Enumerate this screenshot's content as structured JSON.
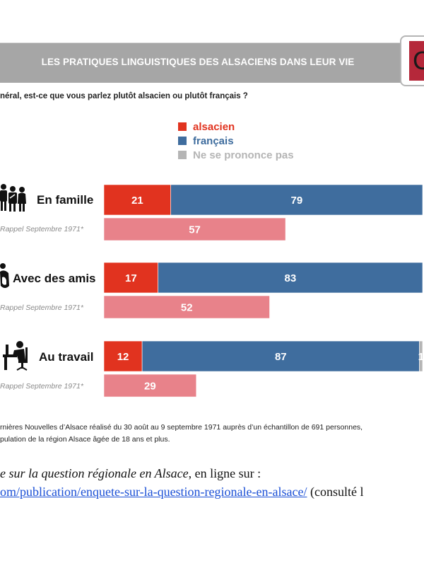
{
  "header": {
    "title": "LES PRATIQUES LINGUISTIQUES DES ALSACIENS DANS LEUR VIE",
    "logo_glyph": "C",
    "question": "néral, est-ce que vous parlez plutôt alsacien ou plutôt français ?"
  },
  "colors": {
    "alsacien": "#e1331f",
    "francais": "#3f6d9e",
    "nsp": "#b5b5b5",
    "rappel": "#e8828a",
    "banner": "#a6a6a6"
  },
  "chart_data": {
    "type": "bar",
    "orientation": "horizontal-stacked",
    "title": "LES PRATIQUES LINGUISTIQUES DES ALSACIENS DANS LEUR VIE",
    "subtitle": "néral, est-ce que vous parlez plutôt alsacien ou plutôt français ?",
    "xlim": [
      0,
      100
    ],
    "grid": false,
    "legend_position": "top",
    "legend": [
      "alsacien",
      "français",
      "Ne se prononce pas"
    ],
    "categories": [
      "En famille",
      "Avec des amis",
      "Au travail"
    ],
    "series": [
      {
        "name": "alsacien",
        "values": [
          21,
          17,
          12
        ]
      },
      {
        "name": "français",
        "values": [
          79,
          83,
          87
        ]
      },
      {
        "name": "Ne se prononce pas",
        "values": [
          0,
          0,
          1
        ]
      }
    ],
    "rappel": {
      "label": "Rappel Septembre 1971*",
      "series_name": "alsacien (1971)",
      "values": [
        57,
        52,
        29
      ]
    }
  },
  "rows": [
    {
      "label": "En famille",
      "icon": "family-icon"
    },
    {
      "label": "Avec des amis",
      "icon": "friends-icon"
    },
    {
      "label": "Au travail",
      "icon": "worker-at-desk-icon"
    }
  ],
  "footnote": {
    "line1": "rnières Nouvelles d’Alsace réalisé du 30 août au 9 septembre 1971 auprès d’un échantillon de 691 personnes,",
    "line2": "pulation de la région Alsace âgée de 18 ans et plus."
  },
  "reference": {
    "italic": "e sur la question régionale en Alsace",
    "after_italic": ", en ligne sur :",
    "link": "om/publication/enquete-sur-la-question-regionale-en-alsace/",
    "after_link": " (consulté l"
  }
}
